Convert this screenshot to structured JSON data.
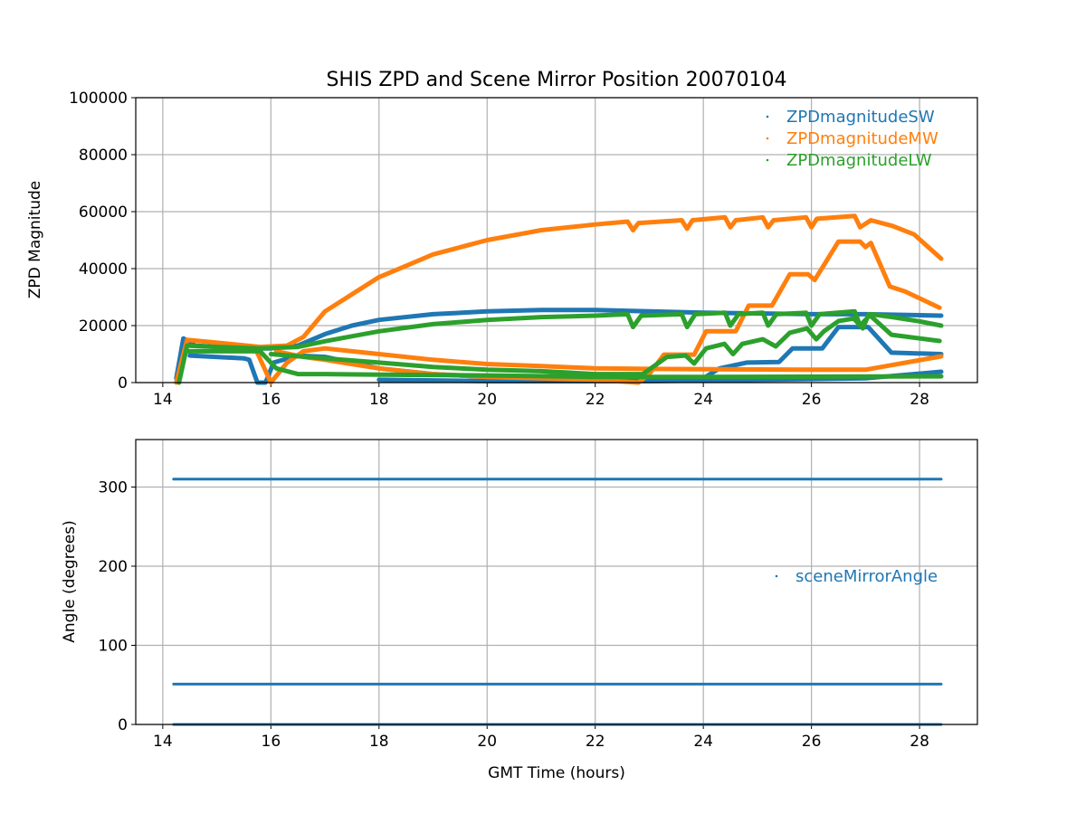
{
  "chart_data": [
    {
      "type": "scatter",
      "title": "SHIS ZPD and Scene Mirror Position 20070104",
      "xlabel": "",
      "ylabel": "ZPD Magnitude",
      "xlim": [
        13.5,
        29.07
      ],
      "ylim": [
        0,
        100000
      ],
      "xticks": [
        "14",
        "16",
        "18",
        "20",
        "22",
        "24",
        "26",
        "28"
      ],
      "yticks": [
        "0",
        "20000",
        "40000",
        "60000",
        "80000",
        "100000"
      ],
      "grid": true,
      "legend_position": "top-right",
      "series": [
        {
          "name": "ZPDmagnitudeSW",
          "color": "#1f77b4",
          "traces": [
            [
              [
                14.25,
                1500
              ],
              [
                14.38,
                15500
              ],
              [
                14.6,
                13000
              ],
              [
                15.5,
                12000
              ],
              [
                16,
                12000
              ],
              [
                16.5,
                13000
              ],
              [
                17,
                17000
              ],
              [
                17.5,
                20000
              ],
              [
                18,
                22000
              ],
              [
                19,
                24000
              ],
              [
                20,
                25000
              ],
              [
                21,
                25500
              ],
              [
                22,
                25500
              ],
              [
                24,
                24500
              ],
              [
                26,
                24000
              ],
              [
                27,
                24000
              ],
              [
                28.4,
                23500
              ]
            ],
            [
              [
                14.5,
                9500
              ],
              [
                15.5,
                8500
              ],
              [
                15.6,
                8000
              ],
              [
                15.75,
                0
              ],
              [
                15.9,
                0
              ],
              [
                16.05,
                7000
              ],
              [
                16.5,
                9500
              ],
              [
                17,
                9000
              ],
              [
                17.5,
                7000
              ],
              [
                18,
                5000
              ],
              [
                19,
                3000
              ],
              [
                20,
                2000
              ],
              [
                21,
                1500
              ],
              [
                22,
                1000
              ],
              [
                23.5,
                1000
              ],
              [
                24.0,
                1500
              ],
              [
                24.3,
                5000
              ],
              [
                24.8,
                7000
              ],
              [
                25.4,
                7200
              ],
              [
                25.65,
                12000
              ],
              [
                26.2,
                12000
              ],
              [
                26.5,
                19500
              ],
              [
                27.05,
                19500
              ],
              [
                27.48,
                10500
              ],
              [
                28.4,
                10000
              ]
            ],
            [
              [
                18,
                1000
              ],
              [
                20,
                500
              ],
              [
                23,
                500
              ],
              [
                25,
                1000
              ],
              [
                27,
                1500
              ],
              [
                28.4,
                3800
              ]
            ]
          ]
        },
        {
          "name": "ZPDmagnitudeMW",
          "color": "#ff7f0e",
          "traces": [
            [
              [
                14.25,
                0
              ],
              [
                14.45,
                15000
              ],
              [
                15,
                14000
              ],
              [
                15.8,
                12500
              ],
              [
                16.3,
                13000
              ],
              [
                16.6,
                16000
              ],
              [
                17,
                25000
              ],
              [
                17.5,
                31000
              ],
              [
                18,
                37000
              ],
              [
                18.5,
                41000
              ],
              [
                19,
                45000
              ],
              [
                19.5,
                47500
              ],
              [
                20,
                50000
              ],
              [
                21,
                53500
              ],
              [
                22,
                55500
              ],
              [
                22.6,
                56500
              ],
              [
                22.7,
                53500
              ],
              [
                22.8,
                56000
              ],
              [
                23.6,
                57000
              ],
              [
                23.7,
                54000
              ],
              [
                23.8,
                57000
              ],
              [
                24.4,
                58000
              ],
              [
                24.5,
                54500
              ],
              [
                24.6,
                57000
              ],
              [
                25.1,
                58000
              ],
              [
                25.2,
                54500
              ],
              [
                25.3,
                57000
              ],
              [
                25.9,
                58000
              ],
              [
                26,
                54500
              ],
              [
                26.1,
                57500
              ],
              [
                26.8,
                58500
              ],
              [
                26.9,
                54500
              ],
              [
                27.1,
                57000
              ],
              [
                27.5,
                55000
              ],
              [
                27.9,
                52000
              ],
              [
                28.4,
                43500
              ]
            ],
            [
              [
                15.7,
                12500
              ],
              [
                16.0,
                0
              ],
              [
                16.3,
                7000
              ],
              [
                16.6,
                11000
              ],
              [
                17,
                12000
              ],
              [
                18,
                10000
              ],
              [
                19,
                8000
              ],
              [
                20,
                6500
              ],
              [
                21,
                5800
              ],
              [
                22,
                5000
              ],
              [
                23,
                4800
              ],
              [
                26,
                4500
              ],
              [
                27,
                4500
              ],
              [
                28.4,
                9200
              ]
            ],
            [
              [
                16.1,
                11000
              ],
              [
                16.6,
                9000
              ],
              [
                17,
                8000
              ],
              [
                18,
                5000
              ],
              [
                19,
                3000
              ],
              [
                20,
                2000
              ],
              [
                21,
                1500
              ],
              [
                22,
                1000
              ],
              [
                22.8,
                0
              ],
              [
                23.0,
                3000
              ],
              [
                23.27,
                9800
              ],
              [
                23.83,
                9800
              ],
              [
                24.05,
                18000
              ],
              [
                24.6,
                18000
              ],
              [
                24.84,
                27000
              ],
              [
                25.27,
                27000
              ],
              [
                25.6,
                38000
              ],
              [
                25.94,
                38000
              ],
              [
                26.06,
                36000
              ],
              [
                26.5,
                49500
              ],
              [
                26.9,
                49500
              ],
              [
                27.0,
                47600
              ],
              [
                27.1,
                49000
              ],
              [
                27.45,
                33700
              ],
              [
                27.73,
                32000
              ],
              [
                28.37,
                26300
              ]
            ]
          ]
        },
        {
          "name": "ZPDmagnitudeLW",
          "color": "#2ca02c",
          "traces": [
            [
              [
                14.3,
                0
              ],
              [
                14.45,
                13000
              ],
              [
                15,
                12500
              ],
              [
                15.8,
                12000
              ],
              [
                16.5,
                12500
              ],
              [
                17,
                14500
              ],
              [
                18,
                18000
              ],
              [
                19,
                20500
              ],
              [
                20,
                22000
              ],
              [
                21,
                23000
              ],
              [
                22,
                23500
              ],
              [
                22.6,
                24000
              ],
              [
                22.7,
                19500
              ],
              [
                22.85,
                23500
              ],
              [
                23.6,
                24000
              ],
              [
                23.7,
                19500
              ],
              [
                23.85,
                24000
              ],
              [
                24.4,
                24500
              ],
              [
                24.5,
                20000
              ],
              [
                24.65,
                24000
              ],
              [
                25.1,
                24500
              ],
              [
                25.2,
                20000
              ],
              [
                25.35,
                24000
              ],
              [
                25.9,
                24500
              ],
              [
                26.0,
                20000
              ],
              [
                26.15,
                24000
              ],
              [
                26.8,
                25000
              ],
              [
                26.9,
                20000
              ],
              [
                27.1,
                24000
              ],
              [
                27.5,
                23000
              ],
              [
                28,
                21500
              ],
              [
                28.4,
                20000
              ]
            ],
            [
              [
                14.45,
                11000
              ],
              [
                15.8,
                11000
              ],
              [
                16.1,
                5000
              ],
              [
                16.5,
                3000
              ],
              [
                17,
                3000
              ],
              [
                18,
                2800
              ],
              [
                20,
                2500
              ],
              [
                22,
                2000
              ],
              [
                24,
                2000
              ],
              [
                28.4,
                2200
              ]
            ],
            [
              [
                16,
                10000
              ],
              [
                17,
                8500
              ],
              [
                18,
                7000
              ],
              [
                19,
                5500
              ],
              [
                20,
                4500
              ],
              [
                21,
                4000
              ],
              [
                22,
                3000
              ],
              [
                22.88,
                3000
              ],
              [
                23.33,
                9000
              ],
              [
                23.67,
                9500
              ],
              [
                23.83,
                6700
              ],
              [
                24.05,
                12000
              ],
              [
                24.39,
                13600
              ],
              [
                24.55,
                10000
              ],
              [
                24.72,
                13600
              ],
              [
                25.1,
                15200
              ],
              [
                25.34,
                12700
              ],
              [
                25.6,
                17500
              ],
              [
                25.92,
                19000
              ],
              [
                26.09,
                15200
              ],
              [
                26.23,
                18000
              ],
              [
                26.5,
                21600
              ],
              [
                26.78,
                22500
              ],
              [
                26.95,
                19000
              ],
              [
                27.06,
                24000
              ],
              [
                27.48,
                16800
              ],
              [
                28.37,
                14600
              ]
            ]
          ]
        }
      ],
      "legend": [
        "ZPDmagnitudeSW",
        "ZPDmagnitudeMW",
        "ZPDmagnitudeLW"
      ]
    },
    {
      "type": "scatter",
      "title": "",
      "xlabel": "GMT Time (hours)",
      "ylabel": "Angle (degrees)",
      "xlim": [
        13.5,
        29.07
      ],
      "ylim": [
        0,
        360
      ],
      "xticks": [
        "14",
        "16",
        "18",
        "20",
        "22",
        "24",
        "26",
        "28"
      ],
      "yticks": [
        "0",
        "100",
        "200",
        "300"
      ],
      "grid": true,
      "legend_position": "center-right",
      "series": [
        {
          "name": "sceneMirrorAngle",
          "color": "#1f77b4",
          "traces": [
            [
              [
                14.2,
                310
              ],
              [
                28.4,
                310
              ]
            ],
            [
              [
                14.2,
                51
              ],
              [
                28.4,
                51
              ]
            ],
            [
              [
                14.2,
                0
              ],
              [
                28.4,
                0
              ]
            ]
          ]
        }
      ],
      "legend": [
        "sceneMirrorAngle"
      ]
    }
  ]
}
